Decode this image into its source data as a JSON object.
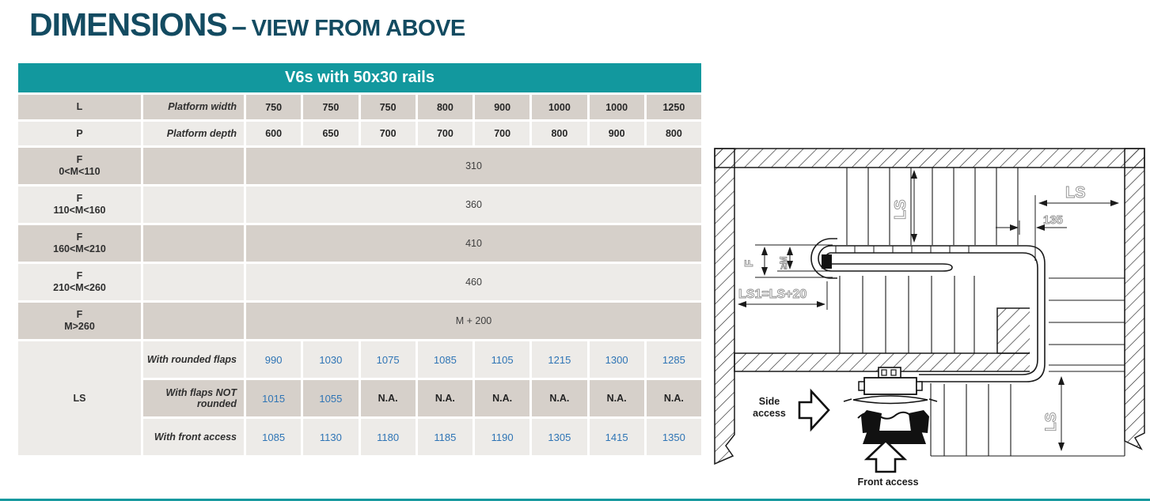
{
  "page": {
    "title_main": "DIMENSIONS",
    "title_dash": "–",
    "title_sub": "VIEW FROM ABOVE"
  },
  "table": {
    "header": "V6s with 50x30 rails",
    "colors": {
      "header_bg": "#12989e",
      "row_dark": "#d6d0ca",
      "row_light": "#edebe8",
      "value_blue": "#2e74b5"
    },
    "rows": [
      {
        "type": "simple",
        "label": "L",
        "sublabel": "Platform width",
        "shade": "d",
        "value_class": "v-bold",
        "values": [
          "750",
          "750",
          "750",
          "800",
          "900",
          "1000",
          "1000",
          "1250"
        ]
      },
      {
        "type": "simple",
        "label": "P",
        "sublabel": "Platform depth",
        "shade": "l",
        "value_class": "v-bold",
        "values": [
          "600",
          "650",
          "700",
          "700",
          "700",
          "800",
          "900",
          "800"
        ]
      },
      {
        "type": "span",
        "label": "F",
        "label2": "0<M<110",
        "shade": "d",
        "merged": "310"
      },
      {
        "type": "span",
        "label": "F",
        "label2": "110<M<160",
        "shade": "l",
        "merged": "360"
      },
      {
        "type": "span",
        "label": "F",
        "label2": "160<M<210",
        "shade": "d",
        "merged": "410"
      },
      {
        "type": "span",
        "label": "F",
        "label2": "210<M<260",
        "shade": "l",
        "merged": "460"
      },
      {
        "type": "span",
        "label": "F",
        "label2": "M>260",
        "shade": "d",
        "merged": "M + 200"
      }
    ],
    "ls_group": {
      "label": "LS",
      "rows": [
        {
          "sublabel": "With rounded flaps",
          "shade": "l",
          "values": [
            "990",
            "1030",
            "1075",
            "1085",
            "1105",
            "1215",
            "1300",
            "1285"
          ]
        },
        {
          "sublabel": "With flaps NOT rounded",
          "shade": "d",
          "values": [
            "1015",
            "1055",
            "N.A.",
            "N.A.",
            "N.A.",
            "N.A.",
            "N.A.",
            "N.A."
          ]
        },
        {
          "sublabel": "With front access",
          "shade": "l",
          "values": [
            "1085",
            "1130",
            "1180",
            "1185",
            "1190",
            "1305",
            "1415",
            "1350"
          ]
        }
      ]
    }
  },
  "diagram": {
    "dims": {
      "ls_upper": "LS",
      "ls_top_right": "LS",
      "dim_135": "135",
      "dim_f": "F",
      "dim_m": "≥M",
      "ls1": "LS1=LS+20",
      "ls_bottom": "LS"
    },
    "labels": {
      "side_access_line1": "Side",
      "side_access_line2": "access",
      "front_access": "Front access"
    }
  }
}
